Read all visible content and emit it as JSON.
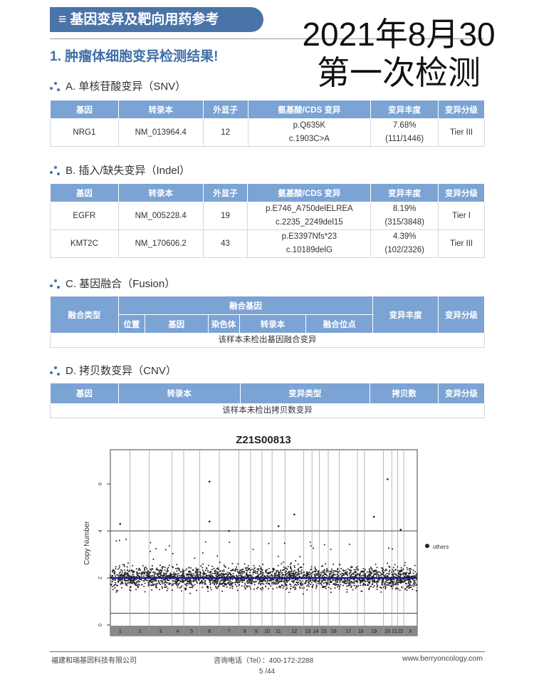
{
  "header": {
    "icon": "menu-icon",
    "title": "基因变异及靶向用药参考"
  },
  "annotation": {
    "line1": "2021年8月30",
    "line2": "第一次检测"
  },
  "section_title": "1. 肿瘤体细胞变异检测结果!",
  "snv": {
    "label": "A. 单核苷酸变异（SNV）",
    "headers": [
      "基因",
      "转录本",
      "外显子",
      "氨基酸/CDS 变异",
      "变异丰度",
      "变异分级"
    ],
    "rows": [
      [
        "NRG1",
        "NM_013964.4",
        "12",
        "p.Q635K",
        "c.1903C>A",
        "7.68%",
        "(111/1446)",
        "Tier III"
      ]
    ]
  },
  "indel": {
    "label": "B. 插入/缺失变异（Indel）",
    "headers": [
      "基因",
      "转录本",
      "外显子",
      "氨基酸/CDS 变异",
      "变异丰度",
      "变异分级"
    ],
    "rows": [
      [
        "EGFR",
        "NM_005228.4",
        "19",
        "p.E746_A750delELREA",
        "c.2235_2249del15",
        "8.19%",
        "(315/3848)",
        "Tier I"
      ],
      [
        "KMT2C",
        "NM_170606.2",
        "43",
        "p.E3397Nfs*23",
        "c.10189delG",
        "4.39%",
        "(102/2326)",
        "Tier III"
      ]
    ]
  },
  "fusion": {
    "label": "C. 基因融合（Fusion）",
    "headers": {
      "type": "融合类型",
      "genes": "融合基因",
      "sub": [
        "位置",
        "基因",
        "染色体",
        "转录本",
        "融合位点"
      ],
      "af": "变异丰度",
      "tier": "变异分级"
    },
    "empty": "该样本未检出基因融合变异"
  },
  "cnv": {
    "label": "D. 拷贝数变异（CNV）",
    "headers": [
      "基因",
      "转录本",
      "变异类型",
      "拷贝数",
      "变异分级"
    ],
    "empty": "该样本未检出拷贝数变异"
  },
  "chart_data": {
    "type": "scatter",
    "title": "Z21S00813",
    "ylabel": "Copy Number",
    "ylim": [
      0,
      7.3
    ],
    "yticks": [
      "0",
      "2",
      "4",
      "6"
    ],
    "reference_lines": [
      4,
      0.5
    ],
    "baseline": 2,
    "baseline_color": "#1a1a8c",
    "point_color": "#222222",
    "legend": {
      "entries": [
        "others"
      ],
      "placement": "right"
    },
    "chromosomes": [
      "1",
      "2",
      "3",
      "4",
      "5",
      "6",
      "7",
      "8",
      "9",
      "10",
      "11",
      "12",
      "13",
      "14",
      "15",
      "16",
      "17",
      "18",
      "19",
      "20",
      "21",
      "22",
      "X"
    ],
    "notable_points": [
      {
        "chr": "1",
        "y": 4.3
      },
      {
        "chr": "6",
        "y": 6.1
      },
      {
        "chr": "6",
        "y": 4.4
      },
      {
        "chr": "7",
        "y": 4.0
      },
      {
        "chr": "11",
        "y": 4.2
      },
      {
        "chr": "12",
        "y": 4.7
      },
      {
        "chr": "19",
        "y": 4.6
      },
      {
        "chr": "20",
        "y": 6.2
      },
      {
        "chr": "22",
        "y": 4.05
      }
    ]
  },
  "footer": {
    "company": "福建和瑞基因科技有限公司",
    "phone": "咨询电话（Tel）：400-172-2288",
    "url": "www.berryoncology.com",
    "page": "5 /44"
  }
}
